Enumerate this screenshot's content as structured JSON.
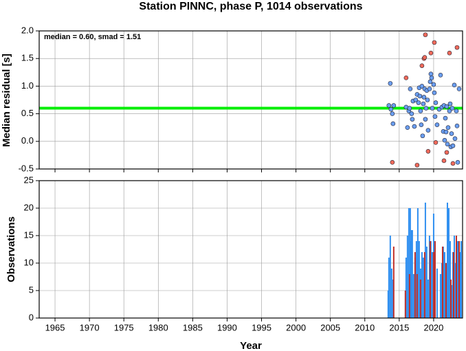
{
  "chart_data": [
    {
      "type": "scatter",
      "title": "Station PINNC, phase P, 1014 observations",
      "y_label": "Median residual [s]",
      "annotation": "median = 0.60, smad = 1.51",
      "median_line": {
        "value": 0.6,
        "color": "#00ee00"
      },
      "ylim": [
        -0.5,
        2.0
      ],
      "yticks": [
        -0.5,
        {
          "value": 0,
          "label": "0.0"
        },
        {
          "value": 0.5,
          "label": "0.5"
        },
        {
          "value": 1,
          "label": "1.0"
        },
        {
          "value": 1.5,
          "label": "1.5"
        },
        {
          "value": 2,
          "label": "2.0"
        }
      ],
      "grid": true,
      "series": [
        {
          "color": "#6a9ef0",
          "x": [
            2013.5,
            2013.7,
            2013.8,
            2014.0,
            2014.1,
            2014.2,
            2016.0,
            2016.2,
            2016.4,
            2016.5,
            2016.6,
            2016.8,
            2016.9,
            2017.0,
            2017.2,
            2017.4,
            2017.6,
            2017.8,
            2017.9,
            2018.0,
            2018.1,
            2018.2,
            2018.3,
            2018.4,
            2018.5,
            2018.6,
            2018.7,
            2018.8,
            2018.9,
            2019.0,
            2019.1,
            2019.2,
            2019.4,
            2019.5,
            2019.6,
            2019.7,
            2019.8,
            2020.0,
            2020.1,
            2020.2,
            2020.3,
            2020.5,
            2020.8,
            2021.0,
            2021.2,
            2021.4,
            2021.5,
            2021.6,
            2021.7,
            2021.8,
            2021.9,
            2022.0,
            2022.1,
            2022.3,
            2022.4,
            2022.5,
            2022.6,
            2022.7,
            2022.8,
            2023.0,
            2023.1,
            2023.3,
            2023.4,
            2023.5,
            2023.7
          ],
          "values": [
            0.65,
            1.05,
            0.58,
            0.5,
            0.32,
            0.65,
            0.62,
            0.25,
            0.55,
            0.6,
            0.95,
            0.5,
            0.4,
            0.73,
            0.27,
            0.75,
            0.85,
            0.7,
            0.97,
            0.82,
            0.55,
            0.3,
            1.0,
            0.1,
            0.68,
            0.8,
            0.95,
            0.4,
            0.6,
            0.92,
            0.75,
            0.2,
            0.95,
            1.08,
            1.22,
            1.15,
            0.6,
            1.03,
            0.88,
            0.45,
            0.7,
            0.3,
            0.58,
            1.2,
            0.62,
            0.18,
            0.65,
            0.02,
            0.42,
            0.17,
            0.63,
            -0.05,
            0.25,
            0.55,
            0.68,
            -0.1,
            0.14,
            0.6,
            -0.08,
            1.02,
            0.05,
            0.55,
            0.28,
            -0.38,
            0.95
          ]
        },
        {
          "color": "#f06a5a",
          "x": [
            2014.0,
            2016.0,
            2017.6,
            2018.3,
            2018.6,
            2018.7,
            2018.8,
            2019.2,
            2019.6,
            2020.1,
            2020.3,
            2021.5,
            2021.9,
            2022.3,
            2022.8,
            2023.4
          ],
          "values": [
            -0.38,
            1.15,
            -0.43,
            1.37,
            1.5,
            1.52,
            1.93,
            -0.18,
            1.6,
            1.79,
            -0.02,
            -0.35,
            -0.2,
            1.6,
            -0.4,
            1.7
          ]
        }
      ]
    },
    {
      "type": "bar",
      "x_label": "Year",
      "y_label": "Observations",
      "xlim": [
        1962.7,
        2024.2
      ],
      "xticks": [
        1965,
        1970,
        1975,
        1980,
        1985,
        1990,
        1995,
        2000,
        2005,
        2010,
        2015,
        2020
      ],
      "ylim": [
        0,
        25
      ],
      "yticks": [
        0,
        5,
        10,
        15,
        20,
        25
      ],
      "grid": true,
      "series": [
        {
          "color": "#2f8ff0",
          "x": [
            2013.4,
            2013.5,
            2013.7,
            2013.9,
            2014.1,
            2015.9,
            2016.0,
            2016.2,
            2016.4,
            2016.6,
            2016.7,
            2016.8,
            2016.9,
            2017.1,
            2017.3,
            2017.5,
            2017.7,
            2017.9,
            2018.1,
            2018.3,
            2018.5,
            2018.8,
            2019.0,
            2019.2,
            2019.4,
            2019.6,
            2019.8,
            2020.0,
            2020.2,
            2020.5,
            2021.0,
            2021.2,
            2021.4,
            2021.6,
            2021.8,
            2022.0,
            2022.2,
            2022.4,
            2022.6,
            2022.8,
            2023.0,
            2023.2,
            2023.5,
            2023.8,
            2024.0
          ],
          "values": [
            5,
            11,
            15,
            9,
            7,
            5,
            11,
            15,
            20,
            20,
            14,
            16,
            16,
            8,
            11,
            14,
            20,
            14,
            9,
            12,
            11,
            21,
            13,
            7,
            15,
            14,
            12,
            19,
            14,
            9,
            8,
            10,
            13,
            12,
            10,
            21,
            20,
            14,
            6,
            12,
            15,
            10,
            14,
            12,
            14
          ]
        },
        {
          "color": "#c0302a",
          "x": [
            2014.2,
            2015.9,
            2016.5,
            2017.3,
            2017.6,
            2018.1,
            2018.7,
            2019.5,
            2020.0,
            2020.2,
            2021.3,
            2021.8,
            2022.5,
            2022.9,
            2023.3,
            2023.7
          ],
          "values": [
            13,
            5,
            8,
            12,
            8,
            7,
            12,
            14,
            12,
            14,
            13,
            10,
            7,
            12,
            15,
            14
          ]
        }
      ]
    }
  ]
}
